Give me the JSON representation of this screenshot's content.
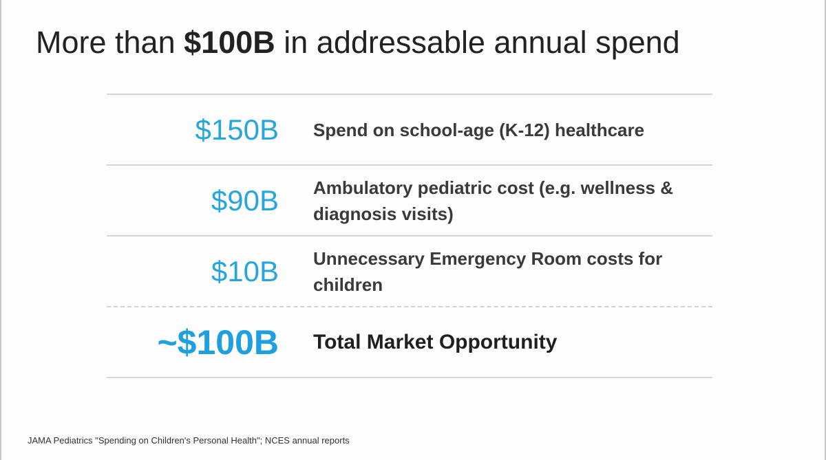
{
  "slide": {
    "title_prefix": "More than",
    "title_bold": "$100B",
    "title_suffix": "in addressable annual spend",
    "rows": [
      {
        "amount": "$150B",
        "description": "Spend on school-age (K-12) healthcare"
      },
      {
        "amount": "$90B",
        "description": "Ambulatory pediatric cost (e.g. wellness & diagnosis visits)"
      },
      {
        "amount": "$10B",
        "description": "Unnecessary Emergency Room costs for children"
      }
    ],
    "total": {
      "amount": "~$100B",
      "description": "Total Market Opportunity"
    },
    "source": "JAMA Pediatrics \"Spending on Children's Personal Health\"; NCES annual reports"
  },
  "colors": {
    "accent_blue": "#27a6dc",
    "text_dark": "#222222",
    "rule_gray": "#d6d6d6"
  }
}
